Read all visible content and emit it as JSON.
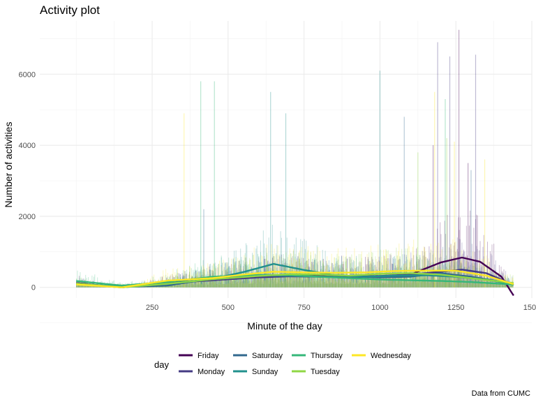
{
  "chart_data": {
    "type": "line",
    "title": "Activity plot",
    "xlabel": "Minute of the day",
    "ylabel": "Number of activities",
    "caption": "Data from CUMC",
    "xlim": [
      -120,
      1500
    ],
    "ylim": [
      -300,
      7500
    ],
    "x_ticks": [
      250,
      500,
      750,
      1000,
      1250,
      1500
    ],
    "y_ticks": [
      0,
      2000,
      4000,
      6000
    ],
    "grid": true,
    "legend": {
      "title": "day",
      "position": "bottom"
    },
    "series": [
      {
        "name": "Friday",
        "color": "#440154",
        "smooth": [
          [
            0,
            120
          ],
          [
            150,
            0
          ],
          [
            300,
            120
          ],
          [
            450,
            220
          ],
          [
            600,
            300
          ],
          [
            700,
            330
          ],
          [
            800,
            320
          ],
          [
            900,
            310
          ],
          [
            1000,
            300
          ],
          [
            1100,
            360
          ],
          [
            1200,
            700
          ],
          [
            1270,
            840
          ],
          [
            1330,
            720
          ],
          [
            1400,
            300
          ],
          [
            1440,
            -230
          ]
        ],
        "raw_peaks": [
          [
            1260,
            7250
          ],
          [
            1175,
            4000
          ],
          [
            1290,
            3500
          ]
        ]
      },
      {
        "name": "Monday",
        "color": "#443A83",
        "smooth": [
          [
            0,
            90
          ],
          [
            150,
            0
          ],
          [
            300,
            120
          ],
          [
            450,
            200
          ],
          [
            600,
            280
          ],
          [
            700,
            310
          ],
          [
            800,
            300
          ],
          [
            900,
            300
          ],
          [
            1000,
            320
          ],
          [
            1100,
            360
          ],
          [
            1200,
            440
          ],
          [
            1270,
            500
          ],
          [
            1350,
            400
          ],
          [
            1440,
            70
          ]
        ],
        "raw_peaks": [
          [
            1190,
            6900
          ],
          [
            1230,
            6500
          ],
          [
            1315,
            6550
          ]
        ]
      },
      {
        "name": "Saturday",
        "color": "#31688E",
        "smooth": [
          [
            0,
            100
          ],
          [
            150,
            10
          ],
          [
            300,
            50
          ],
          [
            450,
            250
          ],
          [
            600,
            330
          ],
          [
            700,
            320
          ],
          [
            800,
            300
          ],
          [
            900,
            300
          ],
          [
            1000,
            280
          ],
          [
            1100,
            300
          ],
          [
            1200,
            400
          ],
          [
            1300,
            300
          ],
          [
            1440,
            100
          ]
        ],
        "raw_peaks": [
          [
            1080,
            4800
          ],
          [
            1300,
            3300
          ],
          [
            420,
            2200
          ]
        ]
      },
      {
        "name": "Sunday",
        "color": "#21908C",
        "smooth": [
          [
            0,
            100
          ],
          [
            150,
            20
          ],
          [
            300,
            100
          ],
          [
            450,
            240
          ],
          [
            550,
            430
          ],
          [
            650,
            660
          ],
          [
            750,
            490
          ],
          [
            850,
            340
          ],
          [
            950,
            300
          ],
          [
            1050,
            330
          ],
          [
            1150,
            340
          ],
          [
            1250,
            300
          ],
          [
            1350,
            220
          ],
          [
            1440,
            80
          ]
        ],
        "raw_peaks": [
          [
            640,
            5500
          ],
          [
            690,
            4900
          ],
          [
            1000,
            6100
          ]
        ]
      },
      {
        "name": "Thursday",
        "color": "#35B779",
        "smooth": [
          [
            0,
            180
          ],
          [
            150,
            50
          ],
          [
            300,
            150
          ],
          [
            450,
            300
          ],
          [
            600,
            350
          ],
          [
            700,
            340
          ],
          [
            800,
            300
          ],
          [
            900,
            260
          ],
          [
            1000,
            220
          ],
          [
            1100,
            200
          ],
          [
            1200,
            180
          ],
          [
            1300,
            150
          ],
          [
            1440,
            80
          ]
        ],
        "raw_peaks": [
          [
            410,
            5800
          ],
          [
            455,
            5800
          ],
          [
            1215,
            5300
          ]
        ]
      },
      {
        "name": "Tuesday",
        "color": "#8FD744",
        "smooth": [
          [
            0,
            110
          ],
          [
            150,
            0
          ],
          [
            300,
            100
          ],
          [
            450,
            230
          ],
          [
            600,
            320
          ],
          [
            700,
            370
          ],
          [
            800,
            360
          ],
          [
            900,
            330
          ],
          [
            1000,
            380
          ],
          [
            1100,
            400
          ],
          [
            1200,
            360
          ],
          [
            1300,
            260
          ],
          [
            1440,
            120
          ]
        ],
        "raw_peaks": [
          [
            1125,
            3800
          ],
          [
            1220,
            4200
          ]
        ]
      },
      {
        "name": "Wednesday",
        "color": "#FDE725",
        "smooth": [
          [
            0,
            80
          ],
          [
            150,
            0
          ],
          [
            300,
            190
          ],
          [
            450,
            260
          ],
          [
            550,
            360
          ],
          [
            650,
            440
          ],
          [
            750,
            420
          ],
          [
            850,
            410
          ],
          [
            950,
            420
          ],
          [
            1050,
            460
          ],
          [
            1150,
            470
          ],
          [
            1250,
            470
          ],
          [
            1350,
            330
          ],
          [
            1440,
            90
          ]
        ],
        "raw_peaks": [
          [
            355,
            4900
          ],
          [
            1180,
            5500
          ],
          [
            1245,
            4100
          ],
          [
            1345,
            3600
          ]
        ]
      }
    ]
  }
}
